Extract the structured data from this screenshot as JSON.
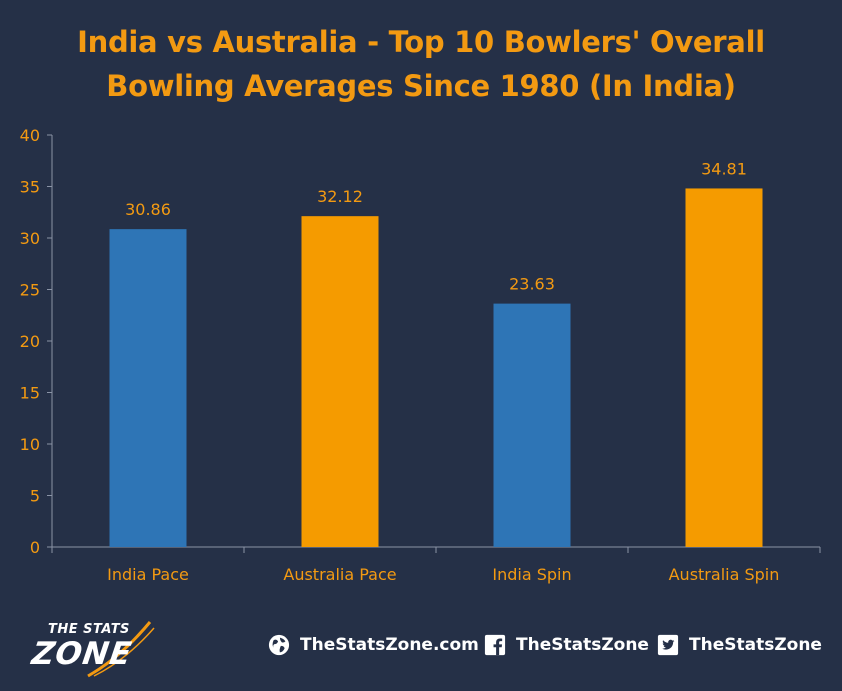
{
  "chart_data": {
    "type": "bar",
    "title_lines": [
      "India vs Australia - Top 10 Bowlers' Overall",
      "Bowling Averages Since 1980 (In India)"
    ],
    "categories": [
      "India Pace",
      "Australia Pace",
      "India Spin",
      "Australia Spin"
    ],
    "values": [
      30.86,
      32.12,
      23.63,
      34.81
    ],
    "value_labels": [
      "30.86",
      "32.12",
      "23.63",
      "34.81"
    ],
    "bar_colors": [
      "#2e75b6",
      "#f59b00",
      "#2e75b6",
      "#f59b00"
    ],
    "xlabel": "",
    "ylabel": "",
    "ylim": [
      0,
      40
    ],
    "yticks": [
      0,
      5,
      10,
      15,
      20,
      25,
      30,
      35,
      40
    ],
    "ytick_labels": [
      "0",
      "5",
      "10",
      "15",
      "20",
      "25",
      "30",
      "35",
      "40"
    ],
    "grid": false,
    "legend": "none",
    "label_color": "#f39a12",
    "axis_color": "#8a93a6"
  },
  "footer": {
    "logo_top": "THE STATS",
    "logo_main": "ZONE",
    "website": "TheStatsZone.com",
    "facebook": "TheStatsZone",
    "twitter": "TheStatsZone",
    "website_icon": "globe-icon",
    "facebook_icon": "facebook-icon",
    "twitter_icon": "twitter-icon"
  },
  "colors": {
    "background": "#253047",
    "accent": "#f39a12",
    "logo_swoosh": "#f39a12"
  }
}
